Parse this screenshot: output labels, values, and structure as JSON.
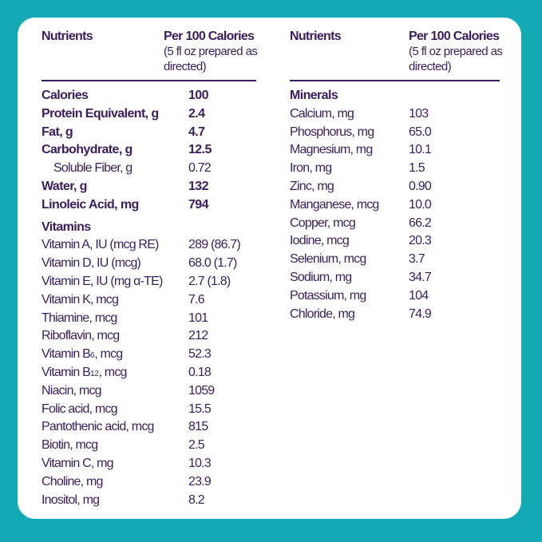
{
  "colors": {
    "background": "#14aab5",
    "card": "#ffffff",
    "text": "#3a1d5e"
  },
  "left": {
    "header": {
      "col1": "Nutrients",
      "col2": "Per 100 Calories",
      "col2_sub": "(5 fl oz prepared as directed)"
    },
    "rows": [
      {
        "name": "Calories",
        "value": "100",
        "style": "b"
      },
      {
        "name": "Protein Equivalent, g",
        "value": "2.4",
        "style": "b"
      },
      {
        "name": "Fat, g",
        "value": "4.7",
        "style": "b"
      },
      {
        "name": "Carbohydrate, g",
        "value": "12.5",
        "style": "b"
      },
      {
        "name": "Soluble Fiber, g",
        "value": "0.72",
        "style": "ind"
      },
      {
        "name": "Water, g",
        "value": "132",
        "style": "b"
      },
      {
        "name": "Linoleic Acid, mg",
        "value": "794",
        "style": "b"
      },
      {
        "name": "Vitamins",
        "value": "",
        "style": "sec"
      },
      {
        "name": "Vitamin A, IU (mcg RE)",
        "value": "289 (86.7)"
      },
      {
        "name": "Vitamin D, IU (mcg)",
        "value": "68.0 (1.7)"
      },
      {
        "name": "Vitamin E, IU (mg α-TE)",
        "value": "2.7 (1.8)"
      },
      {
        "name": "Vitamin K, mcg",
        "value": "7.6"
      },
      {
        "name": "Thiamine, mcg",
        "value": "101"
      },
      {
        "name": "Riboflavin, mcg",
        "value": "212"
      },
      {
        "name": "Vitamin B",
        "sub": "6",
        "suffix": ", mcg",
        "value": "52.3"
      },
      {
        "name": "Vitamin B",
        "sub": "12",
        "suffix": ", mcg",
        "value": "0.18"
      },
      {
        "name": "Niacin, mcg",
        "value": "1059"
      },
      {
        "name": "Folic acid, mcg",
        "value": "15.5"
      },
      {
        "name": "Pantothenic acid, mcg",
        "value": "815"
      },
      {
        "name": "Biotin, mcg",
        "value": "2.5"
      },
      {
        "name": "Vitamin C, mg",
        "value": "10.3"
      },
      {
        "name": "Choline, mg",
        "value": "23.9"
      },
      {
        "name": "Inositol, mg",
        "value": "8.2"
      }
    ]
  },
  "right": {
    "header": {
      "col1": "Nutrients",
      "col2": "Per 100 Calories",
      "col2_sub": "(5 fl oz prepared as directed)"
    },
    "rows": [
      {
        "name": "Minerals",
        "value": "",
        "style": "b"
      },
      {
        "name": "Calcium, mg",
        "value": "103"
      },
      {
        "name": "Phosphorus, mg",
        "value": "65.0"
      },
      {
        "name": "Magnesium, mg",
        "value": "10.1"
      },
      {
        "name": "Iron, mg",
        "value": "1.5"
      },
      {
        "name": "Zinc, mg",
        "value": "0.90"
      },
      {
        "name": "Manganese, mcg",
        "value": "10.0"
      },
      {
        "name": "Copper, mcg",
        "value": "66.2"
      },
      {
        "name": "Iodine, mcg",
        "value": "20.3"
      },
      {
        "name": "Selenium, mcg",
        "value": "3.7"
      },
      {
        "name": "Sodium, mg",
        "value": "34.7"
      },
      {
        "name": "Potassium, mg",
        "value": "104"
      },
      {
        "name": "Chloride, mg",
        "value": "74.9"
      }
    ]
  }
}
